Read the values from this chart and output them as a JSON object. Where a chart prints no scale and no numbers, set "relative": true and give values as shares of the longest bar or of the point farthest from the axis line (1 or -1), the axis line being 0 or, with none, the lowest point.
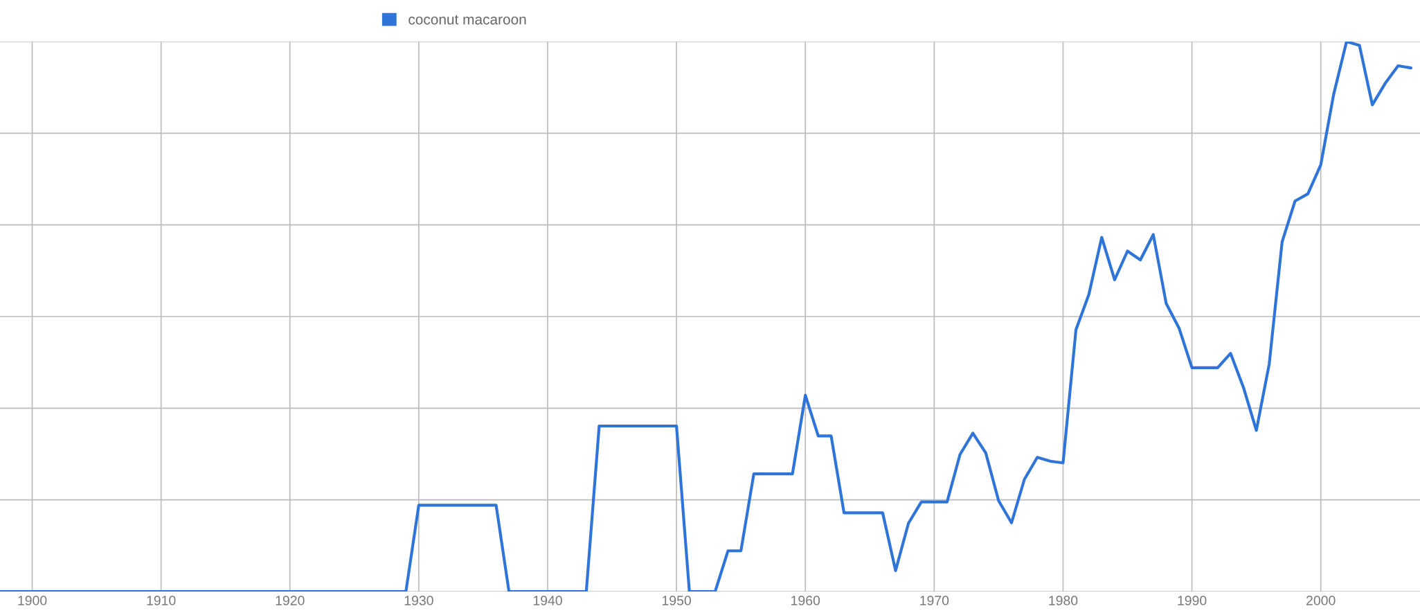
{
  "chart_data": {
    "type": "line",
    "relative": true,
    "x": [
      1897.5,
      1929,
      1930,
      1936,
      1937,
      1943,
      1944,
      1950,
      1951,
      1953,
      1954,
      1955,
      1956,
      1959,
      1960,
      1961,
      1962,
      1963,
      1966,
      1967,
      1968,
      1969,
      1971,
      1972,
      1973,
      1974,
      1975,
      1976,
      1977,
      1978,
      1979,
      1980,
      1981,
      1982,
      1983,
      1984,
      1985,
      1986,
      1987,
      1988,
      1989,
      1990,
      1992,
      1993,
      1994,
      1995,
      1996,
      1997,
      1998,
      1999,
      2000,
      2001,
      2002,
      2003,
      2004,
      2005,
      2006,
      2007
    ],
    "series": [
      {
        "name": "coconut macaroon",
        "color": "#2f74d8",
        "values": [
          0,
          0,
          0.157,
          0.157,
          0,
          0,
          0.301,
          0.301,
          0,
          0,
          0.074,
          0.074,
          0.214,
          0.214,
          0.357,
          0.283,
          0.283,
          0.143,
          0.143,
          0.038,
          0.124,
          0.163,
          0.163,
          0.249,
          0.288,
          0.252,
          0.165,
          0.125,
          0.204,
          0.244,
          0.237,
          0.234,
          0.476,
          0.54,
          0.644,
          0.567,
          0.619,
          0.603,
          0.649,
          0.524,
          0.479,
          0.407,
          0.407,
          0.433,
          0.371,
          0.293,
          0.414,
          0.636,
          0.71,
          0.723,
          0.776,
          0.904,
          1.0,
          0.993,
          0.885,
          0.924,
          0.956,
          0.952
        ]
      }
    ],
    "xlim": [
      1897.5,
      2007.7
    ],
    "xticks": [
      1900,
      1910,
      1920,
      1930,
      1940,
      1950,
      1960,
      1970,
      1980,
      1990,
      2000
    ],
    "grid": true,
    "legend": "top",
    "marker": "none",
    "line_style": "solid"
  }
}
